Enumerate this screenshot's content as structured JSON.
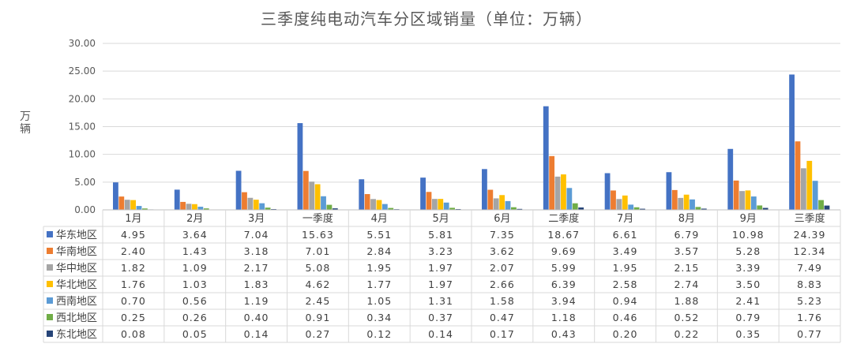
{
  "chart_data": {
    "type": "bar",
    "title": "三季度纯电动汽车分区域销量（单位：万辆）",
    "ylabel": "万辆",
    "xlabel": "",
    "ylim": [
      0,
      30
    ],
    "yticks": [
      "0.00",
      "5.00",
      "10.00",
      "15.00",
      "20.00",
      "25.00",
      "30.00"
    ],
    "grid": true,
    "legend": "data-table-left",
    "categories": [
      "1月",
      "2月",
      "3月",
      "一季度",
      "4月",
      "5月",
      "6月",
      "二季度",
      "7月",
      "8月",
      "9月",
      "三季度"
    ],
    "series": [
      {
        "name": "华东地区",
        "color": "#4472C4",
        "values": [
          4.95,
          3.64,
          7.04,
          15.63,
          5.51,
          5.81,
          7.35,
          18.67,
          6.61,
          6.79,
          10.98,
          24.39
        ],
        "labels": [
          "4.95",
          "3.64",
          "7.04",
          "15.63",
          "5.51",
          "5.81",
          "7.35",
          "18.67",
          "6.61",
          "6.79",
          "10.98",
          "24.39"
        ]
      },
      {
        "name": "华南地区",
        "color": "#ED7D31",
        "values": [
          2.4,
          1.43,
          3.18,
          7.01,
          2.84,
          3.23,
          3.62,
          9.69,
          3.49,
          3.57,
          5.28,
          12.34
        ],
        "labels": [
          "2.40",
          "1.43",
          "3.18",
          "7.01",
          "2.84",
          "3.23",
          "3.62",
          "9.69",
          "3.49",
          "3.57",
          "5.28",
          "12.34"
        ]
      },
      {
        "name": "华中地区",
        "color": "#A5A5A5",
        "values": [
          1.82,
          1.09,
          2.17,
          5.08,
          1.95,
          1.97,
          2.07,
          5.99,
          1.95,
          2.15,
          3.39,
          7.49
        ],
        "labels": [
          "1.82",
          "1.09",
          "2.17",
          "5.08",
          "1.95",
          "1.97",
          "2.07",
          "5.99",
          "1.95",
          "2.15",
          "3.39",
          "7.49"
        ]
      },
      {
        "name": "华北地区",
        "color": "#FFC000",
        "values": [
          1.76,
          1.03,
          1.83,
          4.62,
          1.77,
          1.97,
          2.66,
          6.39,
          2.58,
          2.74,
          3.5,
          8.83
        ],
        "labels": [
          "1.76",
          "1.03",
          "1.83",
          "4.62",
          "1.77",
          "1.97",
          "2.66",
          "6.39",
          "2.58",
          "2.74",
          "3.50",
          "8.83"
        ]
      },
      {
        "name": "西南地区",
        "color": "#5B9BD5",
        "values": [
          0.7,
          0.56,
          1.19,
          2.45,
          1.05,
          1.31,
          1.58,
          3.94,
          0.94,
          1.88,
          2.41,
          5.23
        ],
        "labels": [
          "0.70",
          "0.56",
          "1.19",
          "2.45",
          "1.05",
          "1.31",
          "1.58",
          "3.94",
          "0.94",
          "1.88",
          "2.41",
          "5.23"
        ]
      },
      {
        "name": "西北地区",
        "color": "#70AD47",
        "values": [
          0.25,
          0.26,
          0.4,
          0.91,
          0.34,
          0.37,
          0.47,
          1.18,
          0.46,
          0.52,
          0.79,
          1.76
        ],
        "labels": [
          "0.25",
          "0.26",
          "0.40",
          "0.91",
          "0.34",
          "0.37",
          "0.47",
          "1.18",
          "0.46",
          "0.52",
          "0.79",
          "1.76"
        ]
      },
      {
        "name": "东北地区",
        "color": "#264478",
        "values": [
          0.08,
          0.05,
          0.14,
          0.27,
          0.12,
          0.14,
          0.17,
          0.43,
          0.2,
          0.22,
          0.35,
          0.77
        ],
        "labels": [
          "0.08",
          "0.05",
          "0.14",
          "0.27",
          "0.12",
          "0.14",
          "0.17",
          "0.43",
          "0.20",
          "0.22",
          "0.35",
          "0.77"
        ]
      }
    ]
  }
}
